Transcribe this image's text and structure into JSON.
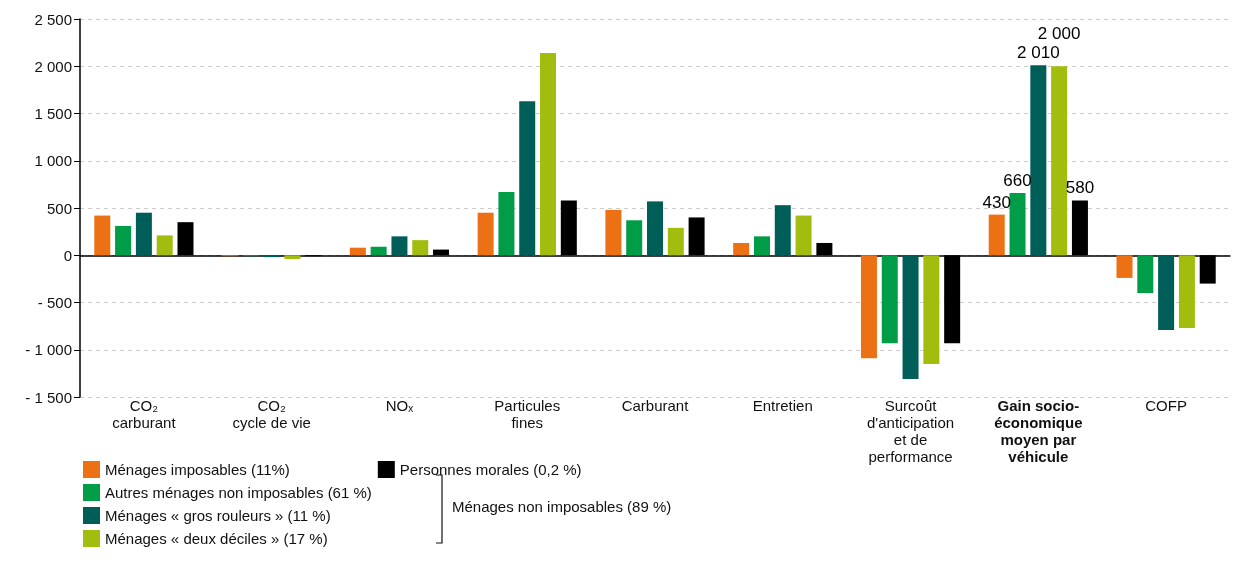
{
  "chart_data": {
    "type": "bar",
    "categories": [
      "CO₂\ncarburant",
      "CO₂\ncycle de vie",
      "NOₓ",
      "Particules\nfines",
      "Carburant",
      "Entretien",
      "Surcoût\nd'anticipation\net de\nperformance",
      "Gain socio-\néconomique\nmoyen par\nvéhicule",
      "COFP"
    ],
    "series": [
      {
        "name": "Ménages imposables (11%)",
        "color": "#ec7014",
        "values": [
          420,
          -10,
          80,
          450,
          480,
          130,
          -1090,
          430,
          -240
        ],
        "value_labels": [
          null,
          null,
          null,
          null,
          null,
          null,
          null,
          "430",
          null
        ]
      },
      {
        "name": "Autres ménages non imposables (61 %)",
        "color": "#009d48",
        "values": [
          310,
          -10,
          90,
          670,
          370,
          200,
          -930,
          660,
          -400
        ],
        "value_labels": [
          null,
          null,
          null,
          null,
          null,
          null,
          null,
          "660",
          null
        ]
      },
      {
        "name": "Ménages « gros rouleurs » (11 %)",
        "color": "#005e58",
        "values": [
          450,
          -20,
          200,
          1630,
          570,
          530,
          -1310,
          2010,
          -790
        ],
        "value_labels": [
          null,
          null,
          null,
          null,
          null,
          null,
          null,
          "2 010",
          null
        ]
      },
      {
        "name": "Ménages « deux déciles » (17 %)",
        "color": "#a2bd0e",
        "values": [
          210,
          -40,
          160,
          2140,
          290,
          420,
          -1150,
          2000,
          -770
        ],
        "value_labels": [
          null,
          null,
          null,
          null,
          null,
          null,
          null,
          "2 000",
          null
        ]
      },
      {
        "name": "Personnes morales (0,2 %)",
        "color": "#000000",
        "values": [
          350,
          -10,
          60,
          580,
          400,
          130,
          -930,
          580,
          -300
        ],
        "value_labels": [
          null,
          null,
          null,
          null,
          null,
          null,
          null,
          "580",
          null
        ]
      }
    ],
    "ylim": [
      -1500,
      2500
    ],
    "yticks": [
      {
        "value": -1500,
        "label": "- 1 500"
      },
      {
        "value": -1000,
        "label": "- 1 000"
      },
      {
        "value": -500,
        "label": "- 500"
      },
      0,
      500,
      {
        "value": 1000,
        "label": "1 000"
      },
      {
        "value": 1500,
        "label": "1 500"
      },
      {
        "value": 2000,
        "label": "2 000"
      },
      {
        "value": 2500,
        "label": "2 500"
      }
    ],
    "grid": "y",
    "legend": "bottom left",
    "annotations": [
      "Ménages non imposables (89 %)"
    ]
  }
}
